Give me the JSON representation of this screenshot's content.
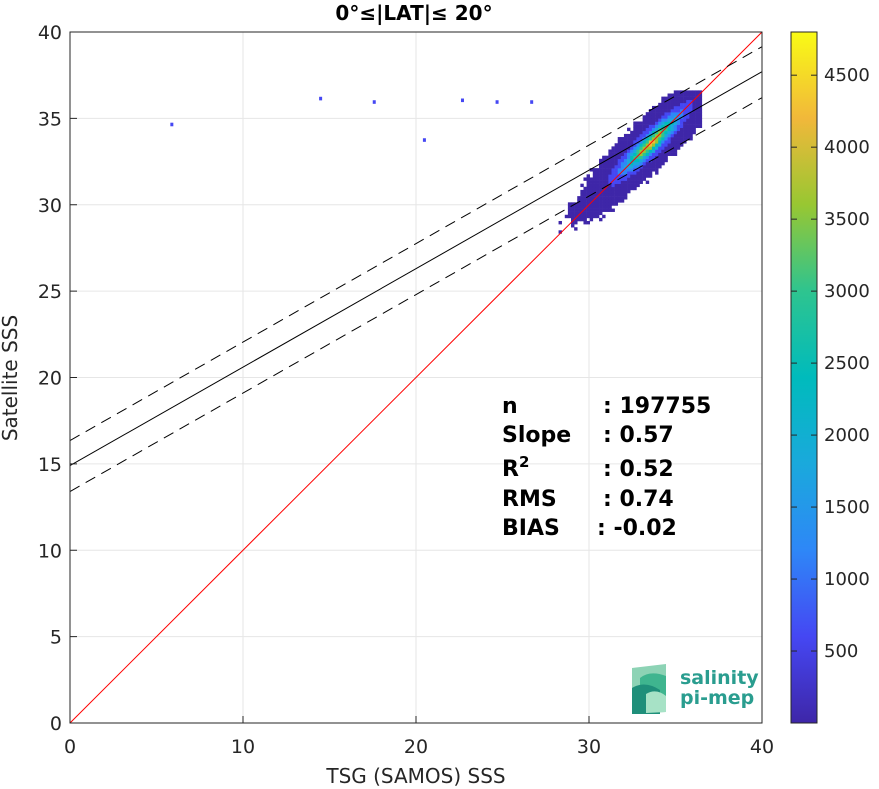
{
  "chart_data": {
    "type": "heatmap",
    "title": "0°≤|LAT|≤ 20°",
    "xlabel": "TSG (SAMOS) SSS",
    "ylabel": "Satellite SSS",
    "xlim": [
      0,
      40
    ],
    "ylim": [
      0,
      40
    ],
    "xticks": [
      "0",
      "10",
      "20",
      "30",
      "40"
    ],
    "yticks": [
      "0",
      "5",
      "10",
      "15",
      "20",
      "25",
      "30",
      "35",
      "40"
    ],
    "grid": true,
    "colorbar": {
      "colormap": "parula",
      "range": [
        0,
        4800
      ],
      "ticks": [
        "500",
        "1000",
        "1500",
        "2000",
        "2500",
        "3000",
        "3500",
        "4000",
        "4500"
      ]
    },
    "lines": [
      {
        "name": "1:1",
        "color": "#ff0000",
        "style": "solid",
        "slope": 1.0,
        "intercept": 0.0
      },
      {
        "name": "fit",
        "color": "#000000",
        "style": "solid",
        "slope": 0.57,
        "intercept": 14.9
      },
      {
        "name": "fit+1σ",
        "color": "#000000",
        "style": "dashed",
        "slope": 0.57,
        "intercept": 16.35
      },
      {
        "name": "fit-1σ",
        "color": "#000000",
        "style": "dashed",
        "slope": 0.57,
        "intercept": 13.4
      }
    ],
    "stats": [
      {
        "label": "n",
        "value": ": 197755"
      },
      {
        "label": "Slope",
        "value": ": 0.57"
      },
      {
        "label": "R",
        "sup": "2",
        "value": ": 0.52"
      },
      {
        "label": "RMS",
        "value": ": 0.74"
      },
      {
        "label": "BIAS",
        "value": ": -0.02"
      }
    ],
    "cluster": {
      "center": [
        33.5,
        33.5
      ],
      "peak_count": 4000,
      "x_range": [
        26.8,
        36.5
      ],
      "y_range": [
        26.0,
        36.5
      ]
    },
    "outliers": [
      {
        "x": 5.8,
        "y": 34.6
      },
      {
        "x": 14.4,
        "y": 36.1
      },
      {
        "x": 17.5,
        "y": 35.9
      },
      {
        "x": 22.6,
        "y": 36.0
      },
      {
        "x": 24.6,
        "y": 35.9
      },
      {
        "x": 26.6,
        "y": 35.9
      },
      {
        "x": 20.4,
        "y": 33.7
      }
    ]
  },
  "logo": {
    "line1": "salinity",
    "line2": "pi-mep"
  },
  "colors": {
    "one_to_one": "#ff0000",
    "fit": "#000000",
    "logo": "#2a9d8f"
  }
}
